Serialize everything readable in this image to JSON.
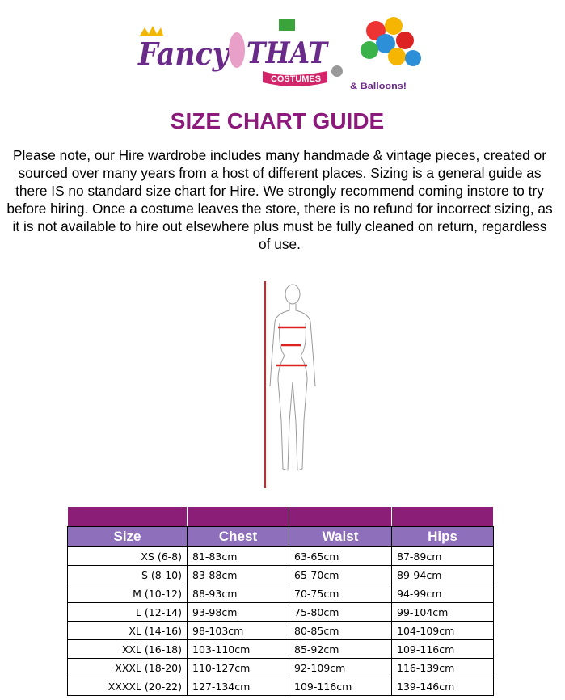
{
  "logo": {
    "text": "Fancy That! Costumes & Balloons!"
  },
  "title": "SIZE CHART GUIDE",
  "note": "Please note, our Hire wardrobe includes many handmade & vintage pieces, created or sourced over many years from a host of different places.  Sizing is a general guide as there IS no standard size chart for Hire.  We strongly recommend coming instore to try before hiring.  Once a costume leaves the store, there is no refund for incorrect sizing, as it is not available to hire out elsewhere plus must be fully cleaned on return, regardless of use.",
  "table": {
    "headers": [
      "Size",
      "Chest",
      "Waist",
      "Hips"
    ],
    "rows": [
      [
        "XS (6-8)",
        "81-83cm",
        "63-65cm",
        "87-89cm"
      ],
      [
        "S (8-10)",
        "83-88cm",
        "65-70cm",
        "89-94cm"
      ],
      [
        "M (10-12)",
        "88-93cm",
        "70-75cm",
        "94-99cm"
      ],
      [
        "L (12-14)",
        "93-98cm",
        "75-80cm",
        "99-104cm"
      ],
      [
        "XL (14-16)",
        "98-103cm",
        "80-85cm",
        "104-109cm"
      ],
      [
        "XXL (16-18)",
        "103-110cm",
        "85-92cm",
        "109-116cm"
      ],
      [
        "XXXL (18-20)",
        "110-127cm",
        "92-109cm",
        "116-139cm"
      ],
      [
        "XXXXL (20-22)",
        "127-134cm",
        "109-116cm",
        "139-146cm"
      ]
    ]
  }
}
